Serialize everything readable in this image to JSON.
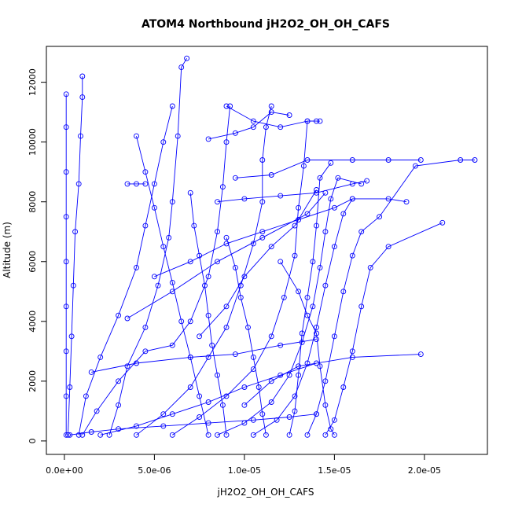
{
  "chart_data": {
    "type": "line",
    "title": "ATOM4 Northbound jH2O2_OH_OH_CAFS",
    "xlabel": "jH2O2_OH_OH_CAFS",
    "ylabel": "Altitude (m)",
    "xlim": [
      -1e-06,
      2.35e-05
    ],
    "ylim": [
      -450,
      13200
    ],
    "x_ticks": [
      {
        "value": 0,
        "label": "0.0e+00"
      },
      {
        "value": 5e-06,
        "label": "5.0e-06"
      },
      {
        "value": 1e-05,
        "label": "1.0e-05"
      },
      {
        "value": 1.5e-05,
        "label": "1.5e-05"
      },
      {
        "value": 2e-05,
        "label": "2.0e-05"
      }
    ],
    "y_ticks": [
      {
        "value": 0,
        "label": "0"
      },
      {
        "value": 2000,
        "label": "2000"
      },
      {
        "value": 4000,
        "label": "4000"
      },
      {
        "value": 6000,
        "label": "6000"
      },
      {
        "value": 8000,
        "label": "8000"
      },
      {
        "value": 10000,
        "label": "10000"
      },
      {
        "value": 12000,
        "label": "12000"
      }
    ],
    "grid": false,
    "marker": "open-circle",
    "series_color": "#0000ff",
    "profiles": [
      {
        "points": [
          [
            1e-07,
            200
          ],
          [
            1e-07,
            1500
          ],
          [
            1e-07,
            3000
          ],
          [
            1e-07,
            4500
          ],
          [
            1e-07,
            6000
          ],
          [
            1e-07,
            7500
          ],
          [
            1e-07,
            9000
          ],
          [
            1e-07,
            10500
          ],
          [
            1e-07,
            11600
          ]
        ]
      },
      {
        "points": [
          [
            2e-07,
            200
          ],
          [
            3e-07,
            1800
          ],
          [
            4e-07,
            3500
          ],
          [
            5e-07,
            5200
          ],
          [
            6e-07,
            7000
          ],
          [
            8e-07,
            8600
          ],
          [
            9e-07,
            10200
          ],
          [
            1e-06,
            11500
          ],
          [
            1e-06,
            12200
          ]
        ]
      },
      {
        "points": [
          [
            8e-07,
            200
          ],
          [
            1.2e-06,
            1500
          ],
          [
            2e-06,
            2800
          ],
          [
            3e-06,
            4200
          ],
          [
            4e-06,
            5800
          ],
          [
            4.5e-06,
            7200
          ],
          [
            5e-06,
            8600
          ],
          [
            5.5e-06,
            10000
          ],
          [
            6e-06,
            11200
          ]
        ]
      },
      {
        "points": [
          [
            2.5e-06,
            200
          ],
          [
            3e-06,
            1200
          ],
          [
            3.5e-06,
            2500
          ],
          [
            4.5e-06,
            3800
          ],
          [
            5.2e-06,
            5200
          ],
          [
            5.8e-06,
            6800
          ],
          [
            6e-06,
            8000
          ],
          [
            6.3e-06,
            10200
          ],
          [
            6.5e-06,
            12500
          ],
          [
            6.8e-06,
            12800
          ]
        ]
      },
      {
        "points": [
          [
            1e-06,
            200
          ],
          [
            1.8e-06,
            1000
          ],
          [
            3e-06,
            2000
          ],
          [
            4.5e-06,
            3000
          ],
          [
            6e-06,
            3200
          ],
          [
            7e-06,
            4000
          ],
          [
            8e-06,
            5500
          ],
          [
            8.5e-06,
            7000
          ],
          [
            8.8e-06,
            8500
          ],
          [
            9e-06,
            10000
          ],
          [
            9.2e-06,
            11200
          ]
        ]
      },
      {
        "points": [
          [
            4e-06,
            200
          ],
          [
            5.5e-06,
            900
          ],
          [
            7e-06,
            1800
          ],
          [
            8e-06,
            2800
          ],
          [
            9e-06,
            3800
          ],
          [
            9.8e-06,
            5200
          ],
          [
            1.05e-05,
            6600
          ],
          [
            1.1e-05,
            8000
          ],
          [
            1.1e-05,
            9400
          ],
          [
            1.12e-05,
            10500
          ],
          [
            1.15e-05,
            11200
          ]
        ]
      },
      {
        "points": [
          [
            6e-06,
            200
          ],
          [
            7.5e-06,
            800
          ],
          [
            9e-06,
            1500
          ],
          [
            1.05e-05,
            2400
          ],
          [
            1.15e-05,
            3500
          ],
          [
            1.22e-05,
            4800
          ],
          [
            1.28e-05,
            6200
          ],
          [
            1.3e-05,
            7800
          ],
          [
            1.33e-05,
            9200
          ],
          [
            1.35e-05,
            10700
          ],
          [
            1.4e-05,
            10700
          ]
        ]
      },
      {
        "points": [
          [
            8.5e-06,
            200
          ],
          [
            1e-05,
            600
          ],
          [
            1.15e-05,
            1300
          ],
          [
            1.25e-05,
            2200
          ],
          [
            1.32e-05,
            3300
          ],
          [
            1.38e-05,
            4500
          ],
          [
            1.42e-05,
            5800
          ],
          [
            1.45e-05,
            7000
          ],
          [
            1.48e-05,
            8100
          ],
          [
            1.52e-05,
            8800
          ],
          [
            1.65e-05,
            8600
          ]
        ]
      },
      {
        "points": [
          [
            1.05e-05,
            200
          ],
          [
            1.18e-05,
            700
          ],
          [
            1.28e-05,
            1500
          ],
          [
            1.35e-05,
            2600
          ],
          [
            1.4e-05,
            3800
          ],
          [
            1.45e-05,
            5200
          ],
          [
            1.5e-05,
            6500
          ],
          [
            1.55e-05,
            7600
          ],
          [
            1.6e-05,
            8100
          ],
          [
            1.8e-05,
            8100
          ],
          [
            1.9e-05,
            8000
          ]
        ]
      },
      {
        "points": [
          [
            1.35e-05,
            200
          ],
          [
            1.4e-05,
            900
          ],
          [
            1.45e-05,
            2000
          ],
          [
            1.5e-05,
            3500
          ],
          [
            1.55e-05,
            5000
          ],
          [
            1.6e-05,
            6200
          ],
          [
            1.65e-05,
            7000
          ],
          [
            1.75e-05,
            7500
          ],
          [
            1.95e-05,
            9200
          ],
          [
            2.2e-05,
            9400
          ],
          [
            2.28e-05,
            9400
          ]
        ]
      },
      {
        "points": [
          [
            1.45e-05,
            200
          ],
          [
            1.5e-05,
            700
          ],
          [
            1.55e-05,
            1800
          ],
          [
            1.6e-05,
            3000
          ],
          [
            1.65e-05,
            4500
          ],
          [
            1.7e-05,
            5800
          ],
          [
            1.8e-05,
            6500
          ],
          [
            2.1e-05,
            7300
          ]
        ]
      },
      {
        "points": [
          [
            1e-05,
            1200
          ],
          [
            1.15e-05,
            2000
          ],
          [
            1.3e-05,
            2500
          ],
          [
            1.6e-05,
            2800
          ],
          [
            1.98e-05,
            2900
          ]
        ]
      },
      {
        "points": [
          [
            1.5e-06,
            2300
          ],
          [
            4e-06,
            2600
          ],
          [
            7e-06,
            2800
          ],
          [
            9.5e-06,
            2900
          ],
          [
            1.2e-05,
            3200
          ],
          [
            1.4e-05,
            3400
          ]
        ]
      },
      {
        "points": [
          [
            3e-07,
            200
          ],
          [
            1.5e-06,
            300
          ],
          [
            3e-06,
            400
          ],
          [
            5.5e-06,
            500
          ],
          [
            8e-06,
            600
          ],
          [
            1.05e-05,
            700
          ],
          [
            1.25e-05,
            800
          ],
          [
            1.4e-05,
            900
          ]
        ]
      },
      {
        "points": [
          [
            2e-06,
            200
          ],
          [
            4e-06,
            500
          ],
          [
            6e-06,
            900
          ],
          [
            8e-06,
            1300
          ],
          [
            1e-05,
            1800
          ],
          [
            1.2e-05,
            2200
          ],
          [
            1.4e-05,
            2600
          ]
        ]
      },
      {
        "points": [
          [
            5e-06,
            5500
          ],
          [
            7e-06,
            6000
          ],
          [
            9e-06,
            6600
          ],
          [
            1.1e-05,
            7000
          ],
          [
            1.3e-05,
            7400
          ],
          [
            1.5e-05,
            7800
          ],
          [
            1.6e-05,
            8100
          ]
        ]
      },
      {
        "points": [
          [
            3.5e-06,
            4100
          ],
          [
            6e-06,
            5000
          ],
          [
            8.5e-06,
            6000
          ],
          [
            1.1e-05,
            6800
          ],
          [
            1.35e-05,
            7600
          ],
          [
            1.45e-05,
            8300
          ]
        ]
      },
      {
        "points": [
          [
            9e-06,
            11200
          ],
          [
            1.05e-05,
            10700
          ],
          [
            1.2e-05,
            10500
          ],
          [
            1.35e-05,
            10700
          ],
          [
            1.42e-05,
            10700
          ]
        ]
      },
      {
        "points": [
          [
            9.5e-06,
            8800
          ],
          [
            1.15e-05,
            8900
          ],
          [
            1.35e-05,
            9400
          ],
          [
            1.6e-05,
            9400
          ],
          [
            1.8e-05,
            9400
          ],
          [
            1.98e-05,
            9400
          ]
        ]
      },
      {
        "points": [
          [
            8e-06,
            10100
          ],
          [
            9.5e-06,
            10300
          ],
          [
            1.05e-05,
            10500
          ],
          [
            1.15e-05,
            11000
          ],
          [
            1.25e-05,
            10900
          ]
        ]
      },
      {
        "points": [
          [
            3.5e-06,
            8600
          ],
          [
            4e-06,
            8600
          ],
          [
            4.5e-06,
            8600
          ]
        ]
      },
      {
        "points": [
          [
            8.5e-06,
            8000
          ],
          [
            1e-05,
            8100
          ],
          [
            1.2e-05,
            8200
          ],
          [
            1.4e-05,
            8300
          ],
          [
            1.6e-05,
            8600
          ],
          [
            1.68e-05,
            8700
          ]
        ]
      },
      {
        "points": [
          [
            7.5e-06,
            3500
          ],
          [
            9e-06,
            4500
          ],
          [
            1e-05,
            5500
          ],
          [
            1.15e-05,
            6500
          ],
          [
            1.28e-05,
            7200
          ],
          [
            1.4e-05,
            8400
          ]
        ]
      },
      {
        "points": [
          [
            1.25e-05,
            200
          ],
          [
            1.28e-05,
            1000
          ],
          [
            1.3e-05,
            2200
          ],
          [
            1.32e-05,
            3600
          ],
          [
            1.35e-05,
            4800
          ],
          [
            1.38e-05,
            6000
          ],
          [
            1.4e-05,
            7200
          ],
          [
            1.42e-05,
            8800
          ],
          [
            1.48e-05,
            9300
          ]
        ]
      },
      {
        "points": [
          [
            1.2e-05,
            6000
          ],
          [
            1.3e-05,
            5000
          ],
          [
            1.35e-05,
            4200
          ],
          [
            1.4e-05,
            3600
          ],
          [
            1.42e-05,
            2500
          ],
          [
            1.45e-05,
            1200
          ],
          [
            1.48e-05,
            400
          ],
          [
            1.5e-05,
            200
          ]
        ]
      },
      {
        "points": [
          [
            9e-06,
            6800
          ],
          [
            9.5e-06,
            5800
          ],
          [
            9.8e-06,
            4800
          ],
          [
            1.02e-05,
            3800
          ],
          [
            1.05e-05,
            2800
          ],
          [
            1.08e-05,
            1800
          ],
          [
            1.1e-05,
            900
          ],
          [
            1.12e-05,
            200
          ]
        ]
      },
      {
        "points": [
          [
            7e-06,
            8300
          ],
          [
            7.2e-06,
            7200
          ],
          [
            7.5e-06,
            6200
          ],
          [
            7.8e-06,
            5200
          ],
          [
            8e-06,
            4200
          ],
          [
            8.2e-06,
            3200
          ],
          [
            8.5e-06,
            2200
          ],
          [
            8.8e-06,
            1200
          ],
          [
            9e-06,
            200
          ]
        ]
      },
      {
        "points": [
          [
            4e-06,
            10200
          ],
          [
            4.5e-06,
            9000
          ],
          [
            5e-06,
            7800
          ],
          [
            5.5e-06,
            6500
          ],
          [
            6e-06,
            5300
          ],
          [
            6.5e-06,
            4000
          ],
          [
            7e-06,
            2800
          ],
          [
            7.5e-06,
            1500
          ],
          [
            8e-06,
            200
          ]
        ]
      }
    ]
  }
}
